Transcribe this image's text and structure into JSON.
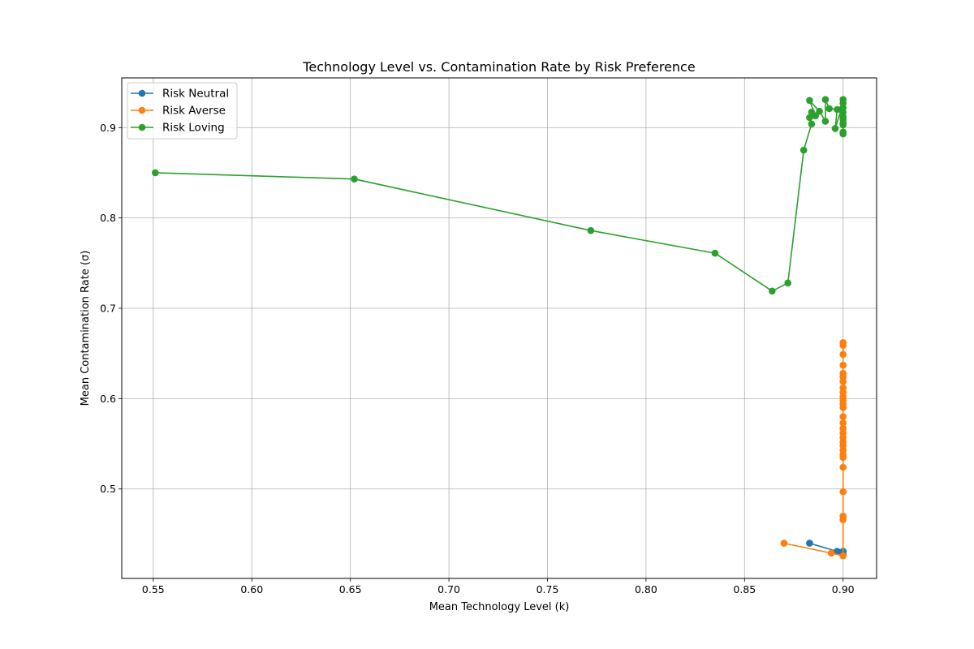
{
  "chart_data": {
    "type": "line",
    "title": "Technology Level vs. Contamination Rate by Risk Preference",
    "xlabel": "Mean Technology Level (k)",
    "ylabel": "Mean Contamination Rate (σ)",
    "xlim": [
      0.534,
      0.917
    ],
    "ylim": [
      0.401,
      0.955
    ],
    "xticks": [
      0.55,
      0.6,
      0.65,
      0.7,
      0.75,
      0.8,
      0.85,
      0.9
    ],
    "xtick_labels": [
      "0.55",
      "0.60",
      "0.65",
      "0.70",
      "0.75",
      "0.80",
      "0.85",
      "0.90"
    ],
    "yticks": [
      0.5,
      0.6,
      0.7,
      0.8,
      0.9
    ],
    "ytick_labels": [
      "0.5",
      "0.6",
      "0.7",
      "0.8",
      "0.9"
    ],
    "grid": true,
    "legend_position": "top-left",
    "series": [
      {
        "name": "Risk Neutral",
        "color": "#1f77b4",
        "points": [
          [
            0.883,
            0.44
          ],
          [
            0.897,
            0.431
          ],
          [
            0.9,
            0.431
          ],
          [
            0.9,
            0.428
          ],
          [
            0.9,
            0.427
          ]
        ]
      },
      {
        "name": "Risk Averse",
        "color": "#ff7f0e",
        "points": [
          [
            0.87,
            0.44
          ],
          [
            0.894,
            0.429
          ],
          [
            0.9,
            0.426
          ],
          [
            0.9,
            0.466
          ],
          [
            0.9,
            0.47
          ],
          [
            0.9,
            0.497
          ],
          [
            0.9,
            0.524
          ],
          [
            0.9,
            0.535
          ],
          [
            0.9,
            0.538
          ],
          [
            0.9,
            0.543
          ],
          [
            0.9,
            0.548
          ],
          [
            0.9,
            0.552
          ],
          [
            0.9,
            0.557
          ],
          [
            0.9,
            0.562
          ],
          [
            0.9,
            0.567
          ],
          [
            0.9,
            0.573
          ],
          [
            0.9,
            0.58
          ],
          [
            0.9,
            0.59
          ],
          [
            0.9,
            0.594
          ],
          [
            0.9,
            0.598
          ],
          [
            0.9,
            0.602
          ],
          [
            0.9,
            0.607
          ],
          [
            0.9,
            0.612
          ],
          [
            0.9,
            0.619
          ],
          [
            0.9,
            0.624
          ],
          [
            0.9,
            0.628
          ],
          [
            0.9,
            0.637
          ],
          [
            0.9,
            0.649
          ],
          [
            0.9,
            0.659
          ],
          [
            0.9,
            0.662
          ]
        ]
      },
      {
        "name": "Risk Loving",
        "color": "#2ca02c",
        "points": [
          [
            0.551,
            0.85
          ],
          [
            0.652,
            0.843
          ],
          [
            0.772,
            0.786
          ],
          [
            0.835,
            0.761
          ],
          [
            0.864,
            0.719
          ],
          [
            0.872,
            0.728
          ],
          [
            0.88,
            0.875
          ],
          [
            0.884,
            0.904
          ],
          [
            0.883,
            0.911
          ],
          [
            0.884,
            0.917
          ],
          [
            0.886,
            0.913
          ],
          [
            0.883,
            0.93
          ],
          [
            0.888,
            0.918
          ],
          [
            0.891,
            0.907
          ],
          [
            0.891,
            0.931
          ],
          [
            0.893,
            0.921
          ],
          [
            0.897,
            0.92
          ],
          [
            0.896,
            0.899
          ],
          [
            0.899,
            0.92
          ],
          [
            0.9,
            0.905
          ],
          [
            0.9,
            0.909
          ],
          [
            0.9,
            0.912
          ],
          [
            0.9,
            0.917
          ],
          [
            0.9,
            0.922
          ],
          [
            0.9,
            0.927
          ],
          [
            0.9,
            0.931
          ],
          [
            0.9,
            0.903
          ],
          [
            0.9,
            0.895
          ],
          [
            0.9,
            0.893
          ]
        ]
      }
    ]
  }
}
